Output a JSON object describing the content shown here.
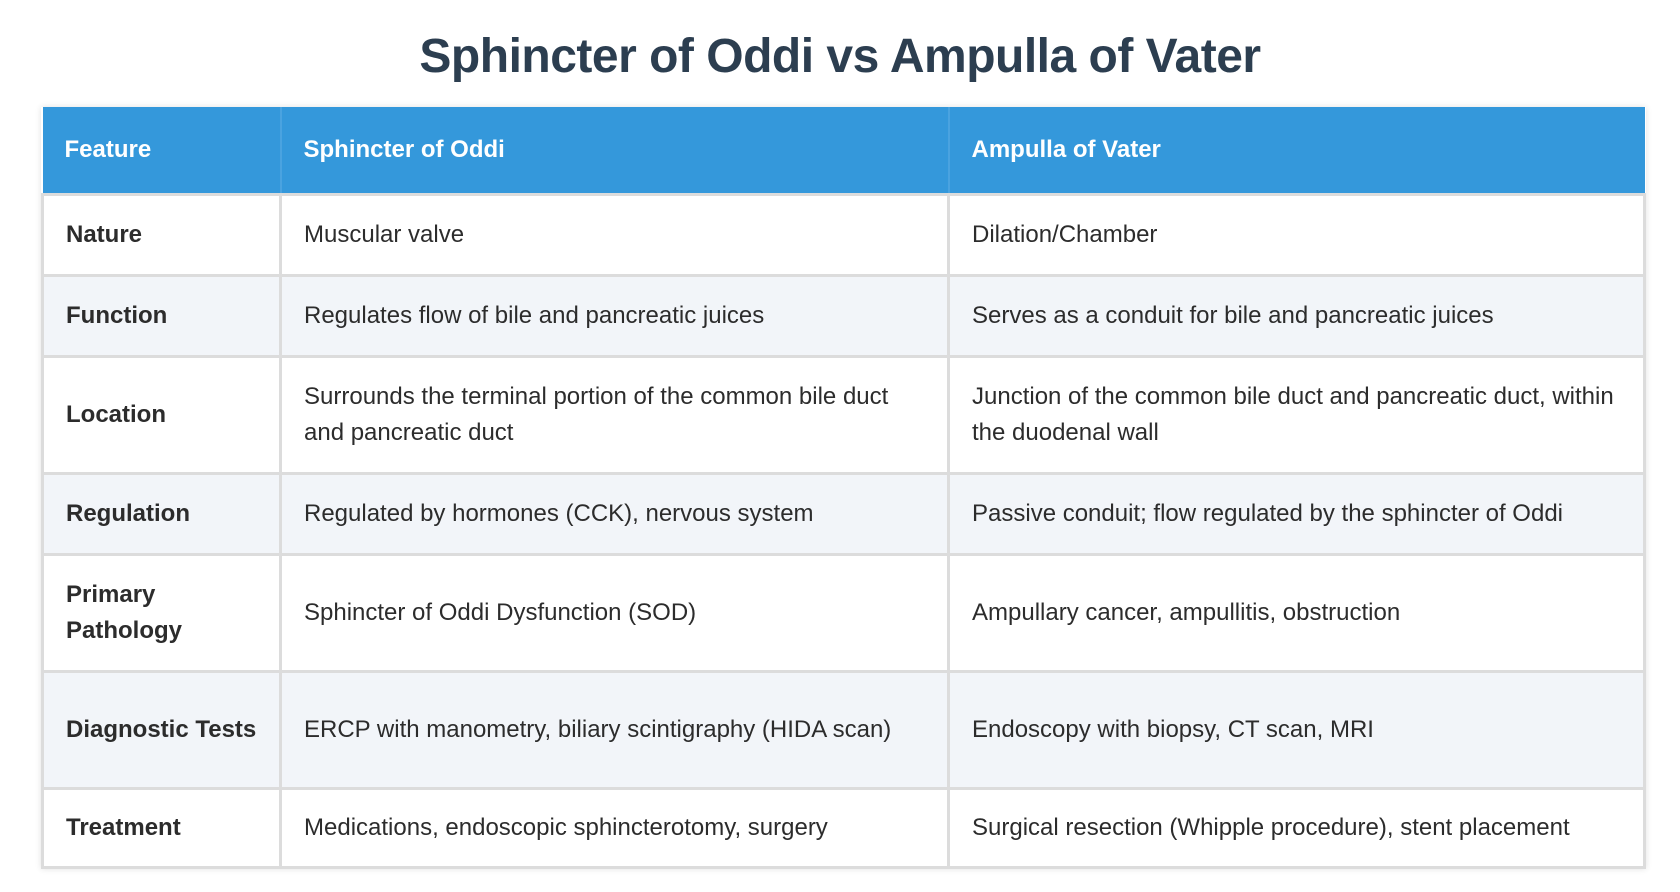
{
  "title": "Sphincter of Oddi vs Ampulla of Vater",
  "table": {
    "headers": [
      "Feature",
      "Sphincter of Oddi",
      "Ampulla of Vater"
    ],
    "rows": [
      [
        "Nature",
        "Muscular valve",
        "Dilation/Chamber"
      ],
      [
        "Function",
        "Regulates flow of bile and pancreatic juices",
        "Serves as a conduit for bile and pancreatic juices"
      ],
      [
        "Location",
        "Surrounds the terminal portion of the common bile duct and pancreatic duct",
        "Junction of the common bile duct and pancreatic duct, within the duodenal wall"
      ],
      [
        "Regulation",
        "Regulated by hormones (CCK), nervous system",
        "Passive conduit; flow regulated by the sphincter of Oddi"
      ],
      [
        "Primary Pathology",
        "Sphincter of Oddi Dysfunction (SOD)",
        "Ampullary cancer, ampullitis, obstruction"
      ],
      [
        "Diagnostic Tests",
        "ERCP with manometry, biliary scintigraphy (HIDA scan)",
        "Endoscopy with biopsy, CT scan, MRI"
      ],
      [
        "Treatment",
        "Medications, endoscopic sphincterotomy, surgery",
        "Surgical resection (Whipple procedure), stent placement"
      ]
    ]
  },
  "colors": {
    "header_bg": "#3498db",
    "title": "#2c3e50",
    "row_alt_bg": "#f2f5f9",
    "border": "#dcdcdc"
  }
}
